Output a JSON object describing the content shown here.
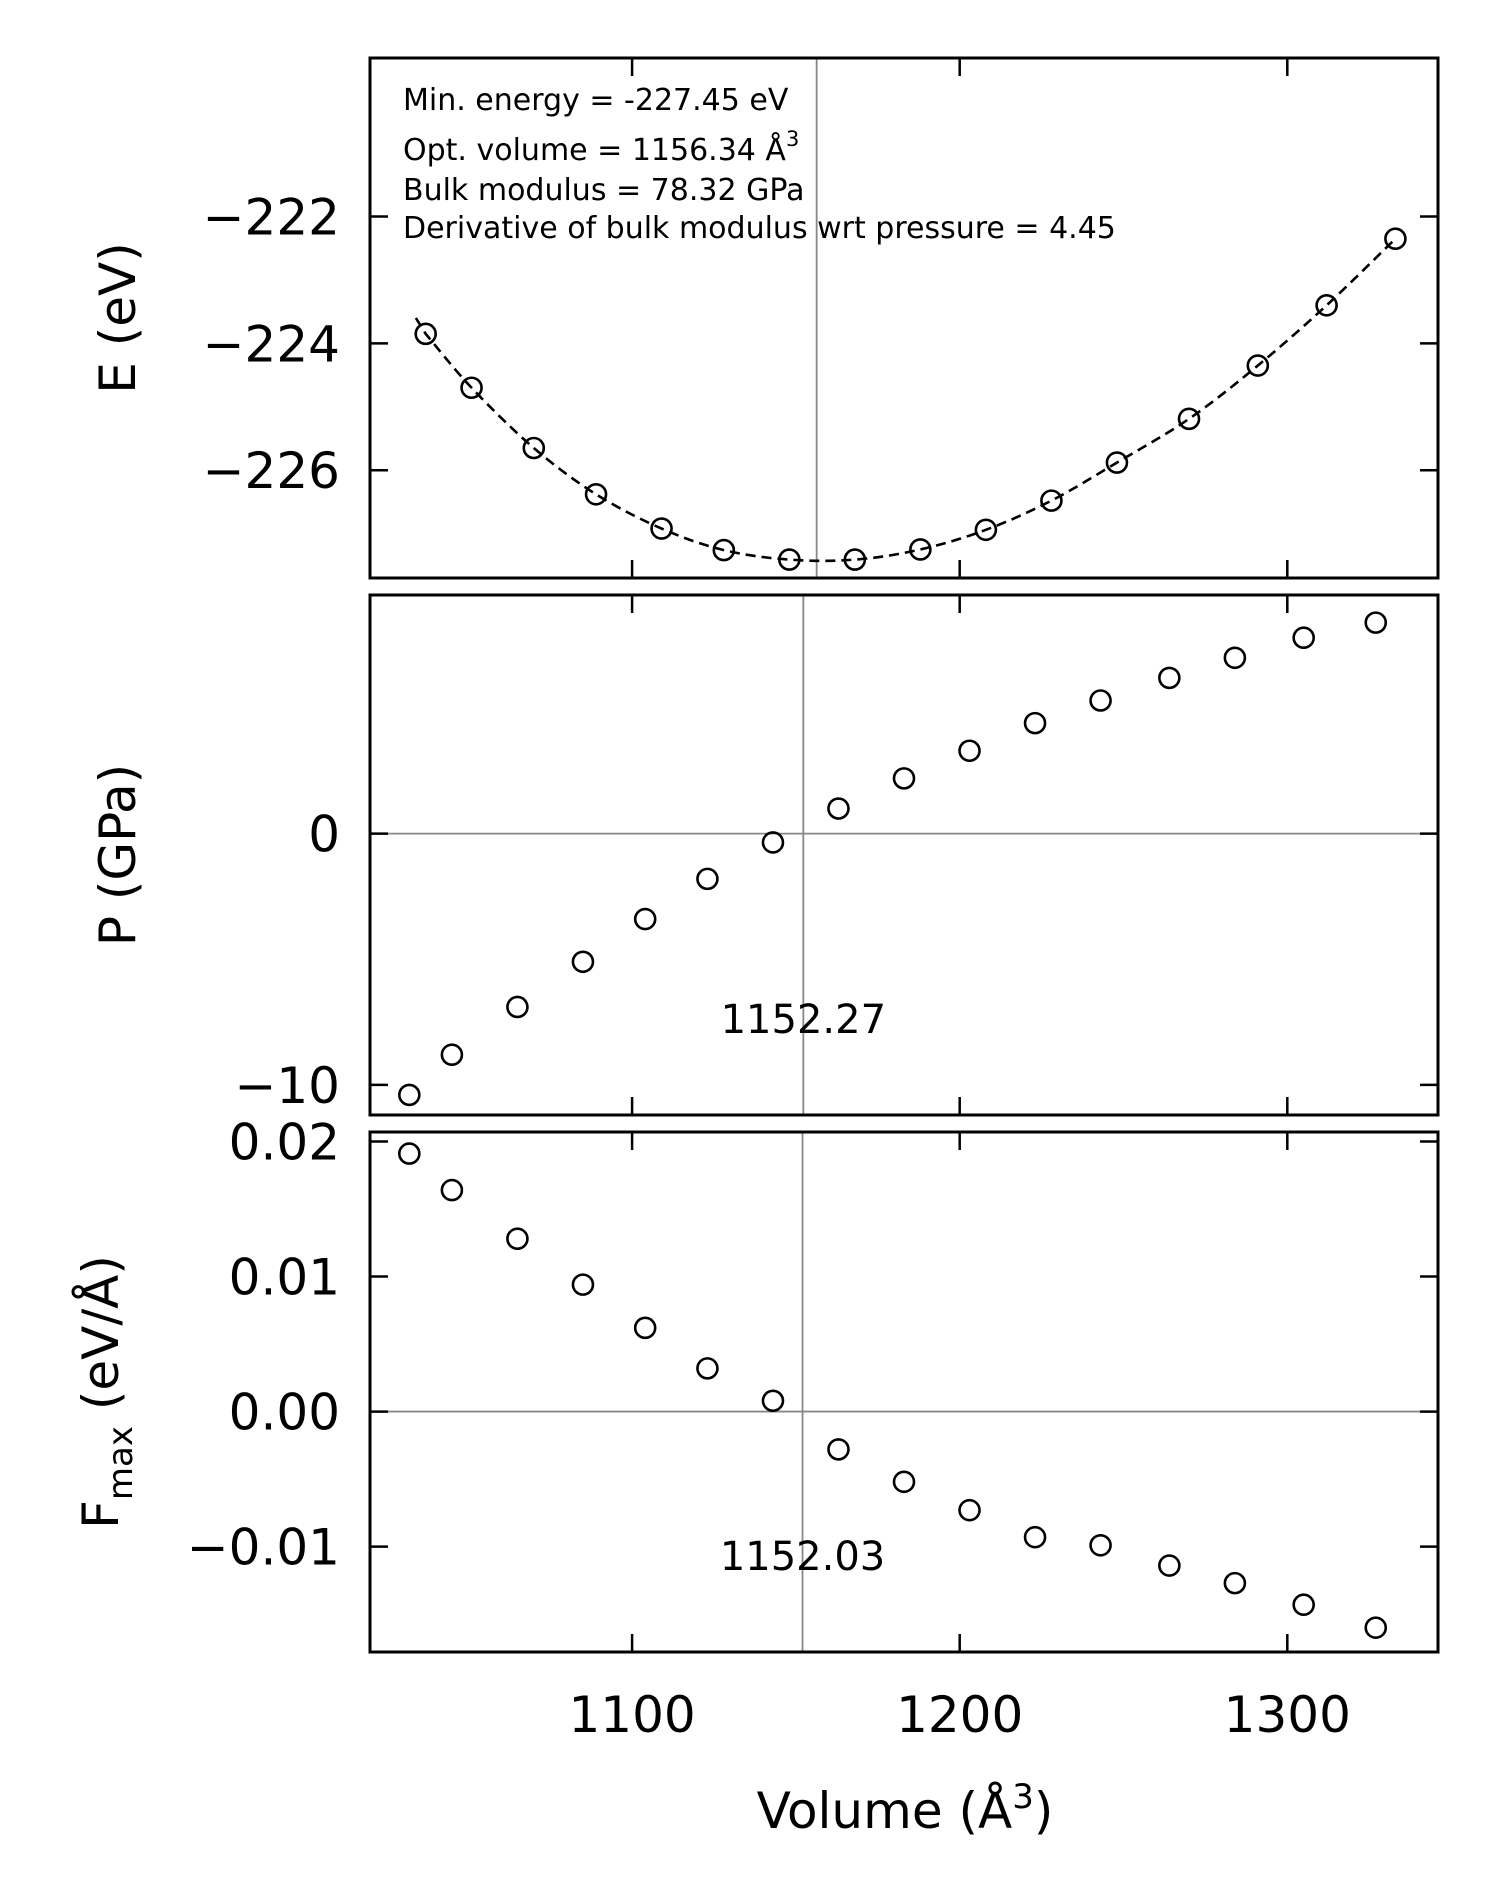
{
  "colors": {
    "ink": "#000000",
    "reference": "#888888",
    "background": "#ffffff"
  },
  "xlabel": "Volume (Å",
  "xlabel_sup": "3",
  "xlabel_close": ")",
  "chart_data": [
    {
      "type": "scatter",
      "ylabel": "E (eV)",
      "xlim": [
        1020,
        1346
      ],
      "ylim": [
        -227.7,
        -219.5
      ],
      "yticks": [
        -222,
        -224,
        -226
      ],
      "ytick_labels": [
        "−222",
        "−224",
        "−226"
      ],
      "vline": 1156.34,
      "fit_curve": "dashed",
      "annotations": [
        "Min. energy = -227.45 eV",
        "Opt. volume = 1156.34 Å",
        "Bulk modulus = 78.32 GPa",
        "Derivative of bulk modulus wrt pressure = 4.45"
      ],
      "annotation_sup": "3",
      "x": [
        1037,
        1051,
        1070,
        1089,
        1109,
        1128,
        1148,
        1168,
        1188,
        1208,
        1228,
        1248,
        1270,
        1291,
        1312,
        1333
      ],
      "y": [
        -223.85,
        -224.7,
        -225.65,
        -226.38,
        -226.92,
        -227.26,
        -227.41,
        -227.41,
        -227.25,
        -226.94,
        -226.48,
        -225.88,
        -225.19,
        -224.35,
        -223.4,
        -222.35
      ]
    },
    {
      "type": "scatter",
      "ylabel": "P (GPa)",
      "xlim": [
        1020,
        1346
      ],
      "ylim": [
        -11.2,
        9.5
      ],
      "yticks": [
        0,
        -10
      ],
      "ytick_labels": [
        "0",
        "−10"
      ],
      "hline": 0,
      "vline": 1152.27,
      "vline_label": "1152.27",
      "x": [
        1032,
        1045,
        1065,
        1085,
        1104,
        1123,
        1143,
        1163,
        1183,
        1203,
        1223,
        1243,
        1264,
        1284,
        1305,
        1327
      ],
      "y": [
        -10.4,
        -8.8,
        -6.9,
        -5.1,
        -3.4,
        -1.8,
        -0.35,
        1.0,
        2.2,
        3.3,
        4.4,
        5.3,
        6.2,
        7.0,
        7.8,
        8.4
      ]
    },
    {
      "type": "scatter",
      "ylabel": "F",
      "ylabel_sub": "max",
      "ylabel_unit": " (eV/Å)",
      "xlim": [
        1020,
        1346
      ],
      "ylim": [
        -0.0178,
        0.0207
      ],
      "yticks": [
        0.02,
        0.01,
        0.0,
        -0.01
      ],
      "ytick_labels": [
        "0.02",
        "0.01",
        "0.00",
        "−0.01"
      ],
      "hline": 0,
      "vline": 1152.03,
      "vline_label": "1152.03",
      "xticks": [
        1100,
        1200,
        1300
      ],
      "xtick_labels": [
        "1100",
        "1200",
        "1300"
      ],
      "x": [
        1032,
        1045,
        1065,
        1085,
        1104,
        1123,
        1143,
        1163,
        1183,
        1203,
        1223,
        1243,
        1264,
        1284,
        1305,
        1327
      ],
      "y": [
        0.0191,
        0.0164,
        0.0128,
        0.0094,
        0.0062,
        0.0032,
        0.0008,
        -0.0028,
        -0.0052,
        -0.0073,
        -0.0093,
        -0.0099,
        -0.0114,
        -0.0127,
        -0.0143,
        -0.016
      ]
    }
  ]
}
